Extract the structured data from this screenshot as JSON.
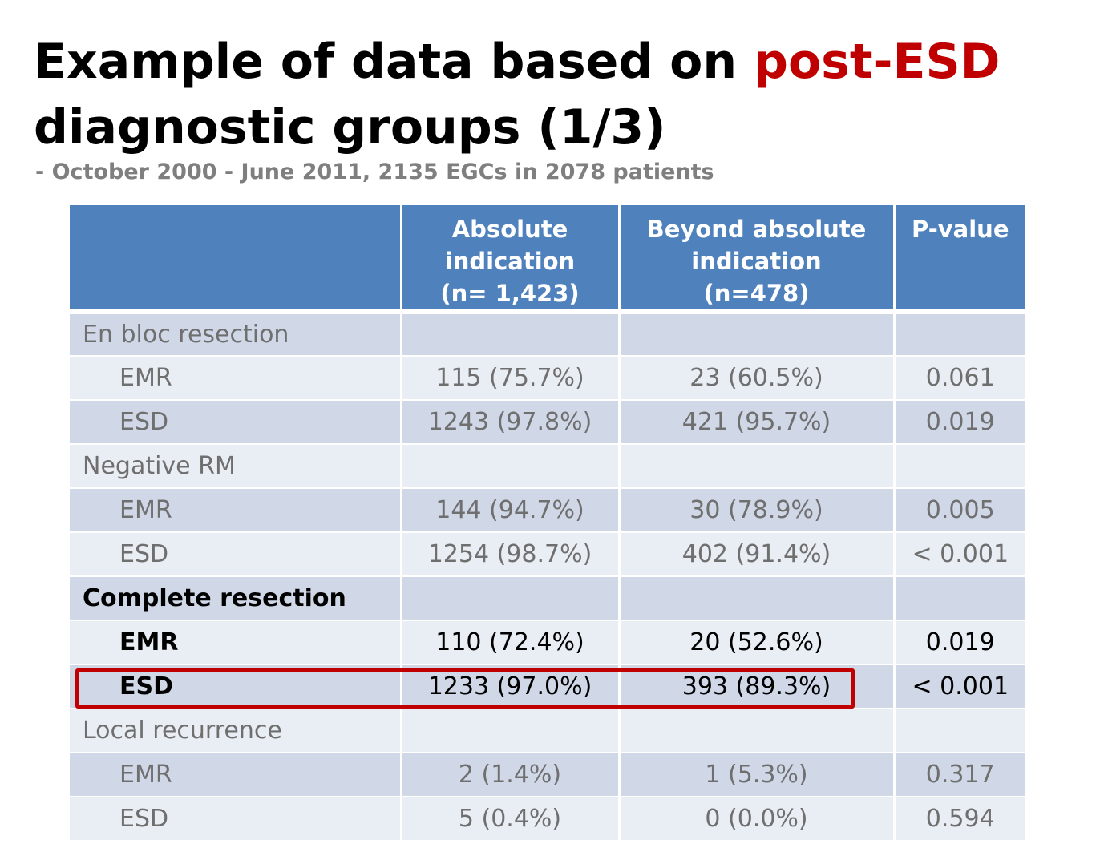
{
  "title": {
    "part1": "Example of data based on ",
    "accent": "post-ESD",
    "part2": "diagnostic groups (1/3)"
  },
  "subtitle": "- October 2000 - June 2011, 2135 EGCs in 2078 patients",
  "colors": {
    "accent": "#c00000",
    "header_bg": "#4f81bd",
    "row_dark": "#d0d8e8",
    "row_light": "#e9edf4",
    "muted_text": "#6f6f6f",
    "subtitle_text": "#7f7f7f"
  },
  "table": {
    "headers": [
      {
        "line1": "",
        "line2": "",
        "line3": ""
      },
      {
        "line1": "Absolute",
        "line2": "indication",
        "line3": "(n= 1,423)"
      },
      {
        "line1": "Beyond absolute",
        "line2": "indication",
        "line3": "(n=478)"
      },
      {
        "line1": "P-value",
        "line2": "",
        "line3": ""
      }
    ],
    "rows": [
      {
        "label": "En bloc resection",
        "absolute": "",
        "beyond": "",
        "p": ""
      },
      {
        "label": "EMR",
        "absolute": "115 (75.7%)",
        "beyond": "23 (60.5%)",
        "p": "0.061"
      },
      {
        "label": "ESD",
        "absolute": "1243 (97.8%)",
        "beyond": "421 (95.7%)",
        "p": "0.019"
      },
      {
        "label": "Negative RM",
        "absolute": "",
        "beyond": "",
        "p": ""
      },
      {
        "label": "EMR",
        "absolute": "144 (94.7%)",
        "beyond": "30 (78.9%)",
        "p": "0.005"
      },
      {
        "label": "ESD",
        "absolute": "1254 (98.7%)",
        "beyond": "402 (91.4%)",
        "p": "< 0.001"
      },
      {
        "label": "Complete resection",
        "absolute": "",
        "beyond": "",
        "p": ""
      },
      {
        "label": "EMR",
        "absolute": "110 (72.4%)",
        "beyond": "20 (52.6%)",
        "p": "0.019"
      },
      {
        "label": "ESD",
        "absolute": "1233 (97.0%)",
        "beyond": "393 (89.3%)",
        "p": "< 0.001"
      },
      {
        "label": "Local recurrence",
        "absolute": "",
        "beyond": "",
        "p": ""
      },
      {
        "label": "EMR",
        "absolute": "2 (1.4%)",
        "beyond": "1 (5.3%)",
        "p": "0.317"
      },
      {
        "label": "ESD",
        "absolute": "5 (0.4%)",
        "beyond": "0 (0.0%)",
        "p": "0.594"
      }
    ]
  }
}
